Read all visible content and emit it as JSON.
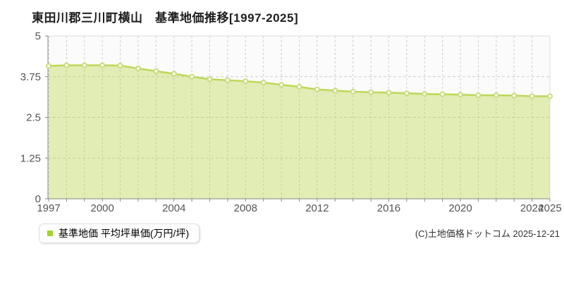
{
  "title": "東田川郡三川町横山　基準地価推移[1997-2025]",
  "legend": {
    "label": "基準地価 平均坪単価(万円/坪)",
    "marker_color": "#a4d32d"
  },
  "copyright": "(C)土地価格ドットコム 2025-12-21",
  "colors": {
    "line": "#bdd854",
    "fill": "#bdd854",
    "fill_opacity": 0.42,
    "marker_fill": "#ffffff",
    "marker_stroke": "#c8dc7c",
    "grid": "#cccccc",
    "axis": "#888888",
    "border": "#dddddd",
    "plot_bg": "#fbfbfb",
    "tick_text": "#555555"
  },
  "chart_data": {
    "type": "area",
    "title": "東田川郡三川町横山　基準地価推移[1997-2025]",
    "series_name": "基準地価 平均坪単価(万円/坪)",
    "x": [
      1997,
      1998,
      1999,
      2000,
      2001,
      2002,
      2003,
      2004,
      2005,
      2006,
      2007,
      2008,
      2009,
      2010,
      2011,
      2012,
      2013,
      2014,
      2015,
      2016,
      2017,
      2018,
      2019,
      2020,
      2021,
      2022,
      2023,
      2024,
      2025
    ],
    "values": [
      4.08,
      4.1,
      4.1,
      4.1,
      4.09,
      4.0,
      3.92,
      3.84,
      3.75,
      3.67,
      3.64,
      3.61,
      3.57,
      3.5,
      3.44,
      3.36,
      3.32,
      3.29,
      3.27,
      3.26,
      3.24,
      3.22,
      3.21,
      3.2,
      3.18,
      3.18,
      3.17,
      3.15,
      3.15
    ],
    "ylabel": "基準地価 平均坪単価(万円/坪)",
    "xlabel": "",
    "ylim": [
      0,
      5
    ],
    "yticks": [
      0,
      1.25,
      2.5,
      3.75,
      5
    ],
    "ytick_labels": [
      "0",
      "1.25",
      "2.5",
      "3.75",
      "5"
    ],
    "xtick_labeled_years": [
      1997,
      2000,
      2004,
      2008,
      2012,
      2016,
      2020,
      2024,
      2025
    ],
    "grid": true,
    "grid_style": "dashed",
    "legend_position": "bottom-left"
  }
}
